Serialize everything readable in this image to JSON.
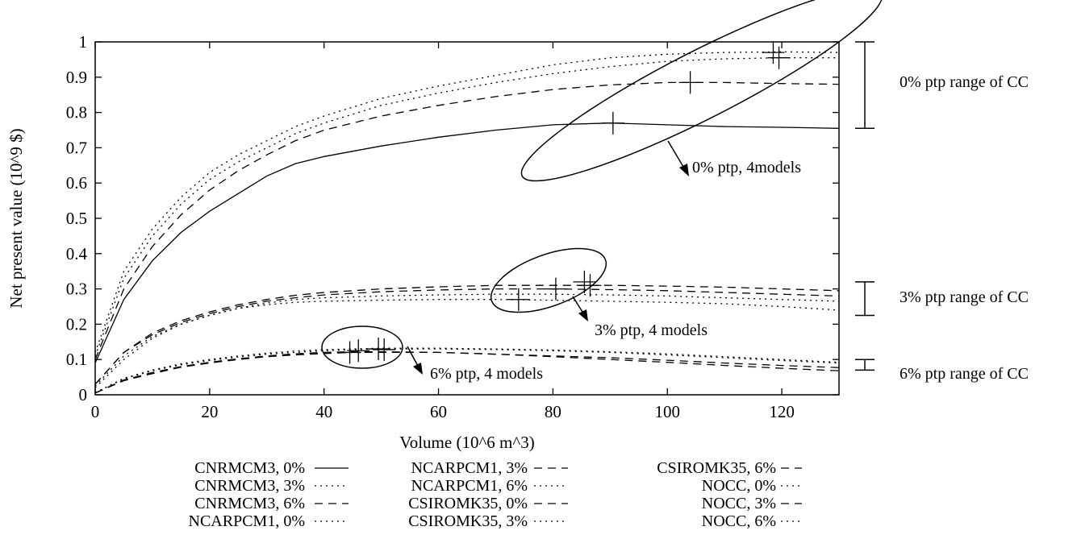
{
  "chart_data": {
    "type": "line",
    "xlabel": "Volume (10^6 m^3)",
    "ylabel": "Net present value (10^9 $)",
    "xlim": [
      0,
      130
    ],
    "ylim": [
      0,
      1
    ],
    "x_ticks": [
      "0",
      "20",
      "40",
      "60",
      "80",
      "100",
      "120"
    ],
    "y_ticks": [
      "0",
      "0.1",
      "0.2",
      "0.3",
      "0.4",
      "0.5",
      "0.6",
      "0.7",
      "0.8",
      "0.9",
      "1"
    ],
    "series": [
      {
        "name": "CNRMCM3, 0%",
        "x": [
          0,
          5,
          10,
          15,
          20,
          25,
          30,
          35,
          40,
          50,
          60,
          70,
          80,
          90,
          100,
          110,
          120,
          130
        ],
        "y": [
          0.09,
          0.27,
          0.38,
          0.46,
          0.52,
          0.57,
          0.62,
          0.655,
          0.675,
          0.705,
          0.73,
          0.75,
          0.765,
          0.77,
          0.765,
          0.76,
          0.758,
          0.755
        ]
      },
      {
        "name": "CNRMCM3, 3%",
        "x": [
          0,
          5,
          10,
          15,
          20,
          25,
          30,
          35,
          40,
          50,
          60,
          70,
          80,
          90,
          100,
          110,
          120,
          130
        ],
        "y": [
          0.02,
          0.1,
          0.16,
          0.2,
          0.225,
          0.245,
          0.26,
          0.27,
          0.275,
          0.28,
          0.283,
          0.285,
          0.285,
          0.283,
          0.28,
          0.275,
          0.27,
          0.265
        ]
      },
      {
        "name": "CNRMCM3, 6%",
        "x": [
          0,
          5,
          10,
          15,
          20,
          25,
          30,
          35,
          40,
          45,
          50,
          60,
          70,
          80,
          90,
          100,
          110,
          120,
          130
        ],
        "y": [
          0.005,
          0.04,
          0.06,
          0.078,
          0.09,
          0.1,
          0.108,
          0.113,
          0.117,
          0.12,
          0.12,
          0.12,
          0.115,
          0.11,
          0.105,
          0.098,
          0.09,
          0.083,
          0.077
        ]
      },
      {
        "name": "NCARPCM1, 0%",
        "x": [
          0,
          5,
          10,
          15,
          20,
          25,
          30,
          35,
          40,
          50,
          60,
          70,
          80,
          90,
          100,
          110,
          120,
          130
        ],
        "y": [
          0.12,
          0.35,
          0.47,
          0.56,
          0.63,
          0.68,
          0.72,
          0.76,
          0.79,
          0.84,
          0.875,
          0.905,
          0.935,
          0.955,
          0.965,
          0.97,
          0.972,
          0.97
        ]
      },
      {
        "name": "NCARPCM1, 3%",
        "x": [
          0,
          5,
          10,
          15,
          20,
          25,
          30,
          35,
          40,
          50,
          60,
          70,
          80,
          90,
          100,
          110,
          120,
          130
        ],
        "y": [
          0.03,
          0.12,
          0.17,
          0.205,
          0.23,
          0.25,
          0.265,
          0.275,
          0.283,
          0.292,
          0.297,
          0.3,
          0.3,
          0.298,
          0.295,
          0.29,
          0.285,
          0.28
        ]
      },
      {
        "name": "NCARPCM1, 6%",
        "x": [
          0,
          5,
          10,
          15,
          20,
          25,
          30,
          35,
          40,
          45,
          50,
          60,
          70,
          80,
          90,
          100,
          110,
          120,
          130
        ],
        "y": [
          0.006,
          0.045,
          0.068,
          0.085,
          0.097,
          0.107,
          0.115,
          0.12,
          0.125,
          0.128,
          0.13,
          0.13,
          0.128,
          0.125,
          0.12,
          0.113,
          0.105,
          0.097,
          0.09
        ]
      },
      {
        "name": "CSIROMK35, 0%",
        "x": [
          0,
          5,
          10,
          15,
          20,
          25,
          30,
          35,
          40,
          50,
          60,
          70,
          80,
          90,
          100,
          110,
          120,
          130
        ],
        "y": [
          0.1,
          0.3,
          0.42,
          0.51,
          0.58,
          0.635,
          0.68,
          0.72,
          0.75,
          0.79,
          0.82,
          0.845,
          0.865,
          0.878,
          0.885,
          0.885,
          0.882,
          0.88
        ]
      },
      {
        "name": "CSIROMK35, 3%",
        "x": [
          0,
          5,
          10,
          15,
          20,
          25,
          30,
          35,
          40,
          50,
          60,
          70,
          80,
          90,
          100,
          110,
          120,
          130
        ],
        "y": [
          0.025,
          0.11,
          0.165,
          0.2,
          0.225,
          0.245,
          0.255,
          0.262,
          0.265,
          0.268,
          0.27,
          0.27,
          0.268,
          0.265,
          0.262,
          0.258,
          0.25,
          0.24
        ]
      },
      {
        "name": "CSIROMK35, 6%",
        "x": [
          0,
          5,
          10,
          15,
          20,
          25,
          30,
          35,
          40,
          45,
          50,
          60,
          70,
          80,
          90,
          100,
          110,
          120,
          130
        ],
        "y": [
          0.005,
          0.042,
          0.063,
          0.08,
          0.092,
          0.102,
          0.11,
          0.116,
          0.12,
          0.122,
          0.122,
          0.12,
          0.115,
          0.108,
          0.1,
          0.092,
          0.083,
          0.075,
          0.068
        ]
      },
      {
        "name": "NOCC, 0%",
        "x": [
          0,
          5,
          10,
          15,
          20,
          25,
          30,
          35,
          40,
          50,
          60,
          70,
          80,
          90,
          100,
          110,
          120,
          130
        ],
        "y": [
          0.11,
          0.33,
          0.45,
          0.54,
          0.61,
          0.66,
          0.7,
          0.74,
          0.77,
          0.82,
          0.855,
          0.885,
          0.91,
          0.93,
          0.945,
          0.952,
          0.955,
          0.955
        ]
      },
      {
        "name": "NOCC, 3%",
        "x": [
          0,
          5,
          10,
          15,
          20,
          25,
          30,
          35,
          40,
          50,
          60,
          70,
          80,
          90,
          100,
          110,
          120,
          130
        ],
        "y": [
          0.03,
          0.12,
          0.175,
          0.21,
          0.235,
          0.255,
          0.27,
          0.282,
          0.29,
          0.3,
          0.306,
          0.31,
          0.31,
          0.31,
          0.308,
          0.305,
          0.3,
          0.295
        ]
      },
      {
        "name": "NOCC, 6%",
        "x": [
          0,
          5,
          10,
          15,
          20,
          25,
          30,
          35,
          40,
          45,
          50,
          60,
          70,
          80,
          90,
          100,
          110,
          120,
          130
        ],
        "y": [
          0.006,
          0.047,
          0.07,
          0.088,
          0.1,
          0.11,
          0.118,
          0.124,
          0.128,
          0.13,
          0.132,
          0.132,
          0.13,
          0.127,
          0.122,
          0.116,
          0.108,
          0.1,
          0.092
        ]
      }
    ],
    "optima": [
      {
        "x": 90.5,
        "y": 0.77
      },
      {
        "x": 104,
        "y": 0.885
      },
      {
        "x": 118.5,
        "y": 0.97
      },
      {
        "x": 119.5,
        "y": 0.955
      },
      {
        "x": 74,
        "y": 0.27
      },
      {
        "x": 80.5,
        "y": 0.3
      },
      {
        "x": 85.5,
        "y": 0.32
      },
      {
        "x": 86.5,
        "y": 0.31
      },
      {
        "x": 44.5,
        "y": 0.12
      },
      {
        "x": 46,
        "y": 0.125
      },
      {
        "x": 49.5,
        "y": 0.13
      },
      {
        "x": 50.5,
        "y": 0.128
      }
    ],
    "annotations": [
      {
        "text": "0% ptp, 4models"
      },
      {
        "text": "3% ptp, 4 models"
      },
      {
        "text": "6% ptp, 4 models"
      }
    ],
    "range_bars": [
      {
        "label": "0% ptp range of CC",
        "min": 0.755,
        "max": 1.0
      },
      {
        "label": "3% ptp range of CC",
        "min": 0.225,
        "max": 0.32
      },
      {
        "label": "6% ptp range of CC",
        "min": 0.07,
        "max": 0.1
      }
    ],
    "legend": [
      {
        "label": "CNRMCM3, 0%",
        "dash": "solid"
      },
      {
        "label": "CNRMCM3, 3%",
        "dash": "dot"
      },
      {
        "label": "CNRMCM3, 6%",
        "dash": "dash"
      },
      {
        "label": "NCARPCM1, 0%",
        "dash": "dot"
      },
      {
        "label": "NCARPCM1, 3%",
        "dash": "dash"
      },
      {
        "label": "NCARPCM1, 6%",
        "dash": "dot"
      },
      {
        "label": "CSIROMK35, 0%",
        "dash": "dash"
      },
      {
        "label": "CSIROMK35, 3%",
        "dash": "dot"
      },
      {
        "label": "CSIROMK35, 6%",
        "dash": "dash"
      },
      {
        "label": "NOCC, 0%",
        "dash": "dot"
      },
      {
        "label": "NOCC, 3%",
        "dash": "dash"
      },
      {
        "label": "NOCC, 6%",
        "dash": "dot"
      }
    ]
  }
}
